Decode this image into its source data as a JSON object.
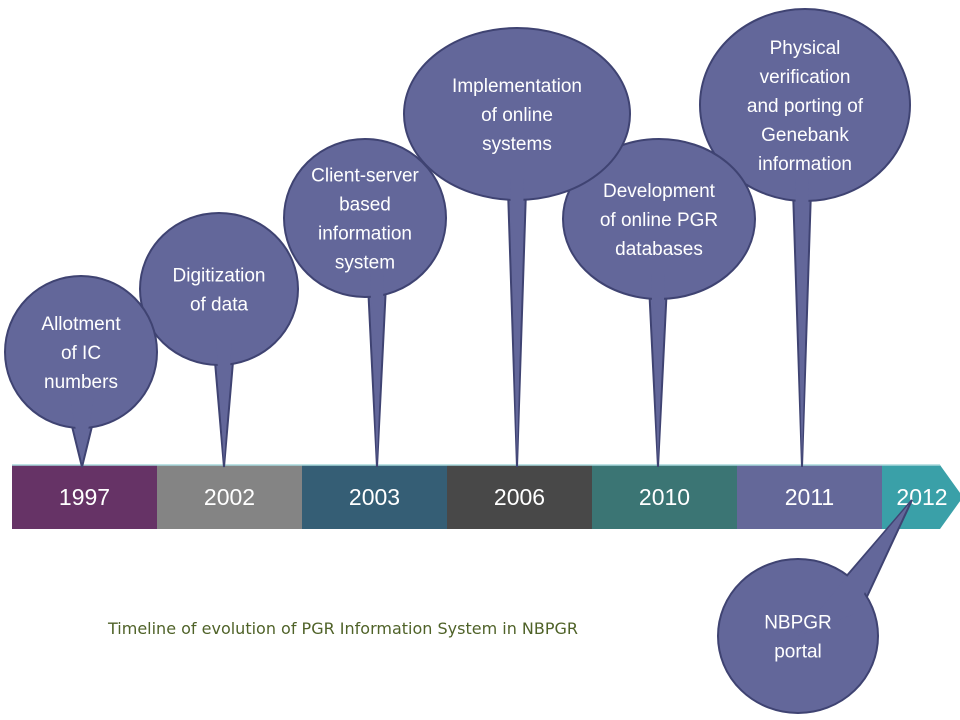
{
  "caption": "Timeline of evolution of PGR Information System in NBPGR",
  "colors": {
    "bubble_fill": "#63679a",
    "bubble_stroke": "#3f4372",
    "caption": "#4f6228"
  },
  "segments": [
    {
      "year": "1997",
      "color": "#663366"
    },
    {
      "year": "2002",
      "color": "#848484"
    },
    {
      "year": "2003",
      "color": "#355e75"
    },
    {
      "year": "2006",
      "color": "#484848"
    },
    {
      "year": "2010",
      "color": "#3b7574"
    },
    {
      "year": "2011",
      "color": "#646899"
    },
    {
      "year": "2012",
      "color": "#3aa0a8"
    }
  ],
  "milestones": [
    {
      "lines": [
        "Allotment",
        "of IC",
        "numbers"
      ]
    },
    {
      "lines": [
        "Digitization",
        "of data"
      ]
    },
    {
      "lines": [
        "Client-server",
        "based",
        "information",
        "system"
      ]
    },
    {
      "lines": [
        "Implementation",
        "of online",
        "systems"
      ]
    },
    {
      "lines": [
        "Development",
        "of online PGR",
        "databases"
      ]
    },
    {
      "lines": [
        "Physical",
        "verification",
        "and porting of",
        "Genebank",
        "information"
      ]
    },
    {
      "lines": [
        "NBPGR",
        "portal"
      ]
    }
  ]
}
